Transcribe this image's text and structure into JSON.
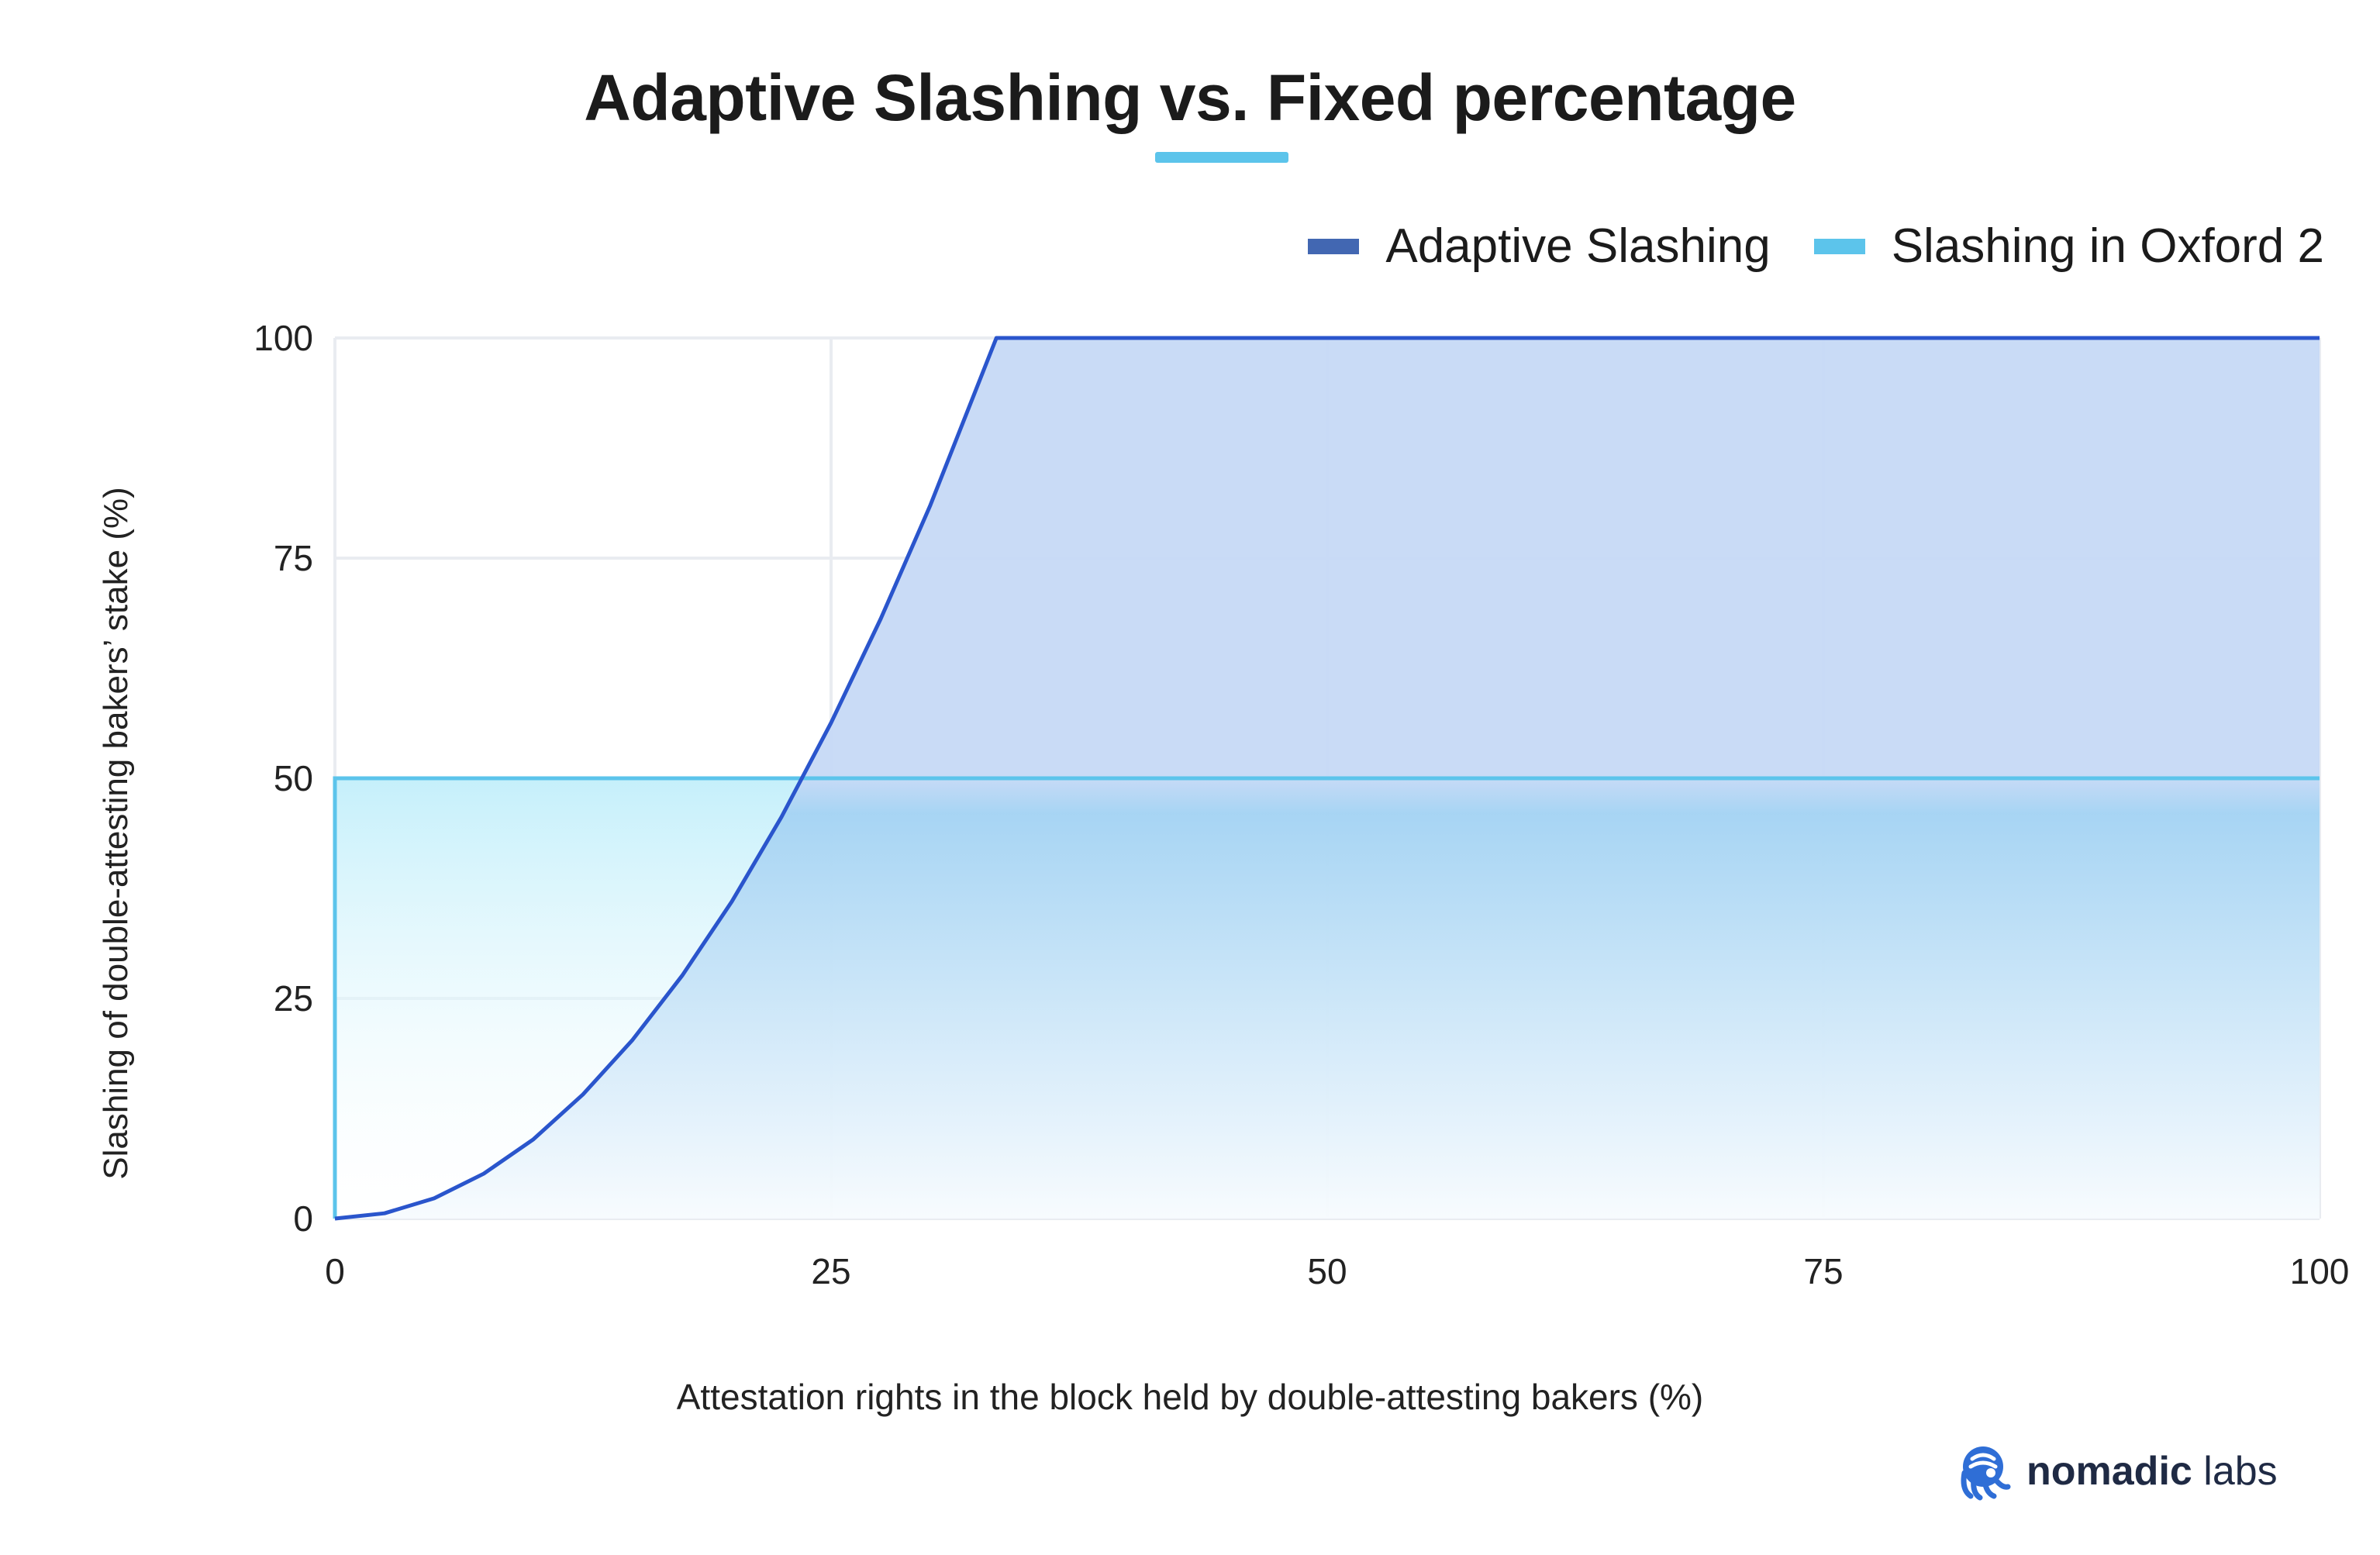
{
  "chart_data": {
    "type": "area",
    "title": "Adaptive Slashing vs. Fixed percentage",
    "xlabel": "Attestation rights in the block held by double-attesting bakers (%)",
    "ylabel": "Slashing of double-attesting bakers’ stake (%)",
    "xlim": [
      0,
      100
    ],
    "ylim": [
      0,
      100
    ],
    "x_ticks": [
      0,
      25,
      50,
      75,
      100
    ],
    "y_ticks": [
      0,
      25,
      50,
      75,
      100
    ],
    "grid": true,
    "legend_position": "top-right",
    "series": [
      {
        "name": "Adaptive Slashing",
        "color": "#4267b2",
        "x": [
          0,
          2.5,
          5,
          7.5,
          10,
          12.5,
          15,
          17.5,
          20,
          22.5,
          25,
          27.5,
          30,
          33.33,
          40,
          50,
          60,
          70,
          80,
          90,
          100
        ],
        "y": [
          0,
          0.6,
          2.3,
          5.1,
          9,
          14.1,
          20.3,
          27.6,
          36,
          45.6,
          56.3,
          68.1,
          81,
          100,
          100,
          100,
          100,
          100,
          100,
          100,
          100
        ]
      },
      {
        "name": "Slashing in Oxford 2",
        "color": "#5cc4eb",
        "x": [
          0,
          25,
          50,
          75,
          100
        ],
        "y": [
          50,
          50,
          50,
          50,
          50
        ]
      }
    ]
  },
  "logo": {
    "icon": "octopus-icon",
    "brand_bold": "nomadic",
    "brand_rest": " labs"
  }
}
